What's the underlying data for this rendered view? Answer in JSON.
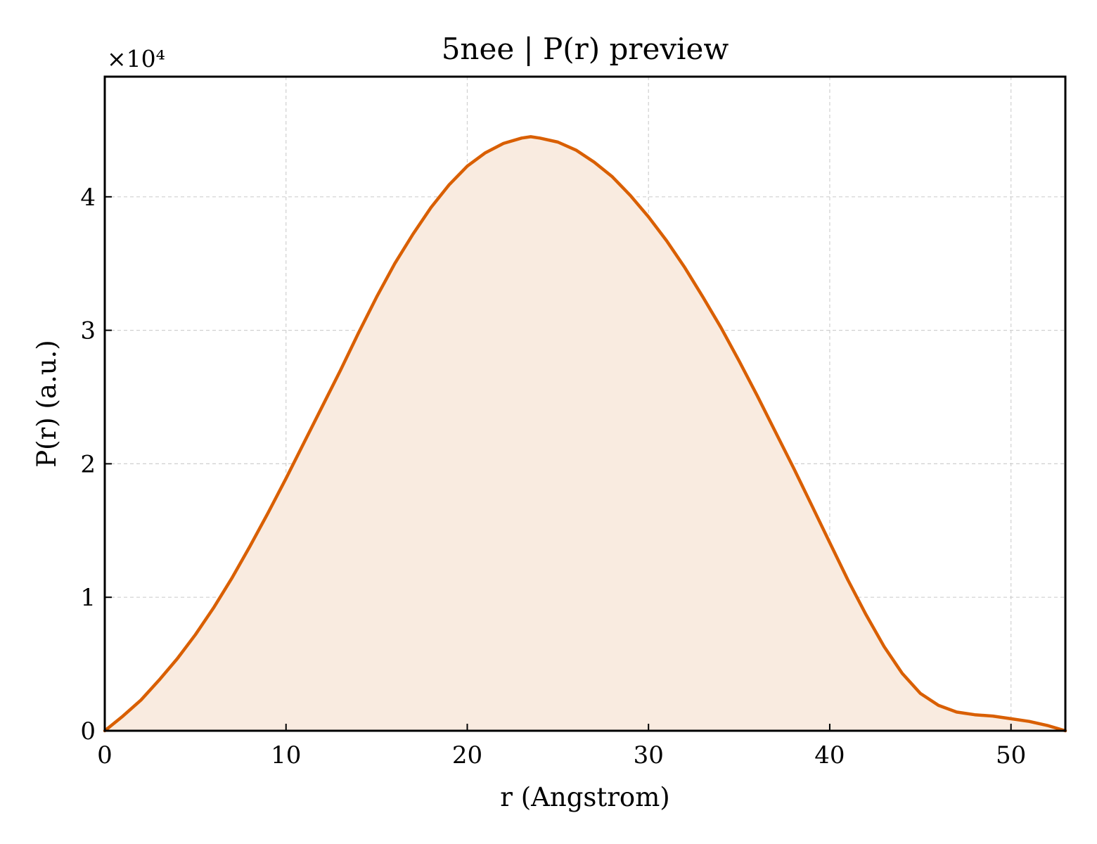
{
  "chart_data": {
    "type": "area",
    "title": "5nee | P(r) preview",
    "xlabel": "r (Angstrom)",
    "ylabel": "P(r) (a.u.)",
    "y_offset_label": "×10⁴",
    "y_scale": 10000,
    "xlim": [
      0,
      53
    ],
    "ylim": [
      0,
      49000
    ],
    "x_ticks": [
      0,
      10,
      20,
      30,
      40,
      50
    ],
    "x_tick_labels": [
      "0",
      "10",
      "20",
      "30",
      "40",
      "50"
    ],
    "y_ticks": [
      0,
      10000,
      20000,
      30000,
      40000
    ],
    "y_tick_labels": [
      "0",
      "1",
      "2",
      "3",
      "4"
    ],
    "grid": true,
    "colors": {
      "line": "#d95f02",
      "fill": "#f9ebe0"
    },
    "series": [
      {
        "x": [
          0,
          1,
          2,
          3,
          4,
          5,
          6,
          7,
          8,
          9,
          10,
          11,
          12,
          13,
          14,
          15,
          16,
          17,
          18,
          19,
          20,
          21,
          22,
          23,
          23.5,
          24,
          25,
          26,
          27,
          28,
          29,
          30,
          31,
          32,
          33,
          34,
          35,
          36,
          37,
          38,
          39,
          40,
          41,
          42,
          43,
          44,
          45,
          46,
          47,
          48,
          49,
          50,
          51,
          52,
          53
        ],
        "y": [
          0,
          1100,
          2300,
          3800,
          5400,
          7200,
          9200,
          11400,
          13800,
          16300,
          18900,
          21600,
          24300,
          27000,
          29800,
          32500,
          35000,
          37200,
          39200,
          40900,
          42300,
          43300,
          44000,
          44400,
          44500,
          44400,
          44100,
          43500,
          42600,
          41500,
          40100,
          38500,
          36700,
          34700,
          32500,
          30200,
          27700,
          25100,
          22400,
          19700,
          16900,
          14100,
          11300,
          8700,
          6300,
          4300,
          2800,
          1900,
          1400,
          1200,
          1100,
          900,
          700,
          400,
          0
        ]
      }
    ]
  }
}
